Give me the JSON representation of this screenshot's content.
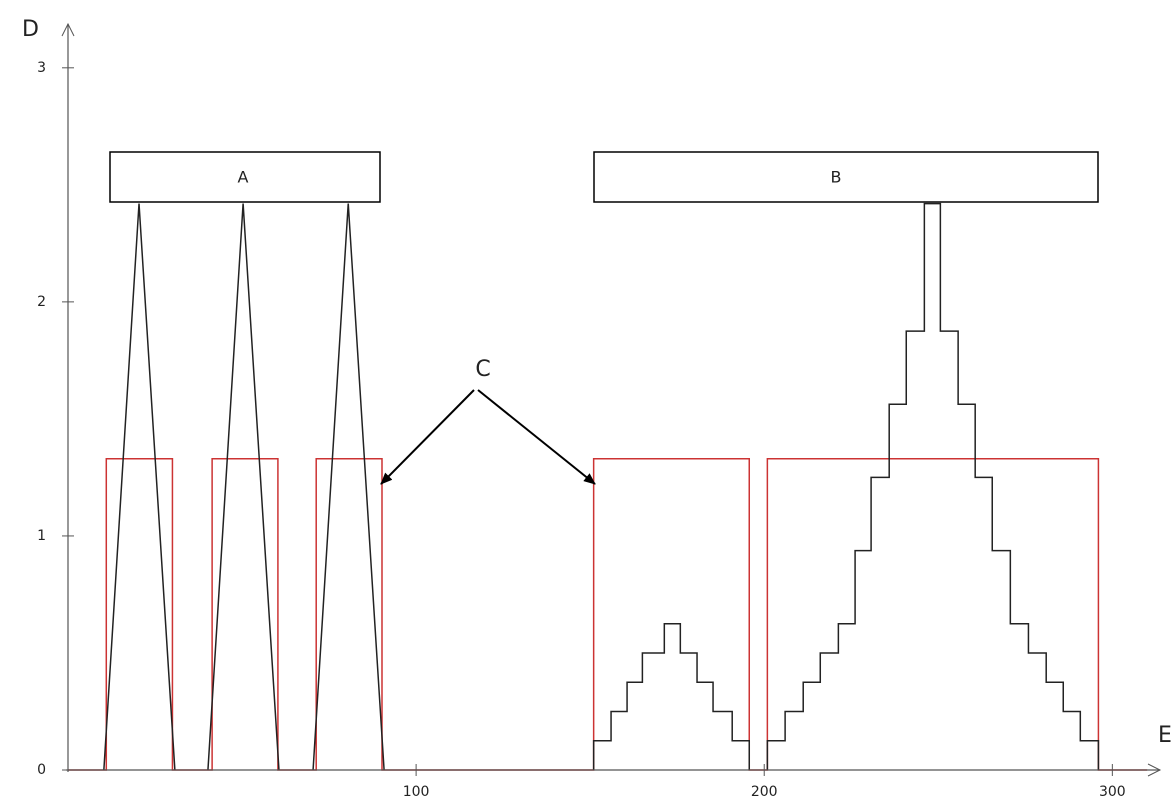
{
  "chart_data": {
    "type": "line",
    "x_label": "E",
    "y_label": "D",
    "annotations": [
      "A",
      "B",
      "C"
    ],
    "xlim": [
      0,
      318
    ],
    "ylim": [
      0,
      3.2
    ],
    "xticks": [
      100,
      200,
      300
    ],
    "yticks": [
      0,
      1,
      2,
      3
    ],
    "series": [
      {
        "color": "#cc3333",
        "step": true,
        "x": [
          0,
          11,
          30,
          41.4,
          60.3,
          71.3,
          90.2,
          151,
          195.7,
          200.9,
          296,
          310
        ],
        "values": [
          0,
          1.33,
          0,
          1.33,
          0,
          1.33,
          0,
          1.33,
          0,
          1.33,
          0,
          0
        ]
      },
      {
        "color": "#222222",
        "step": false,
        "x": [
          10.3,
          20.4,
          30.7,
          null,
          40.2,
          50.3,
          60.6,
          null,
          70.4,
          80.5,
          90.8
        ],
        "values": [
          0,
          2.42,
          0,
          null,
          0,
          2.42,
          0,
          null,
          0,
          2.42,
          0
        ]
      },
      {
        "color": "#222222",
        "step": true,
        "x": [
          151,
          151,
          156,
          160.6,
          165,
          171.3,
          175.9,
          180.7,
          185.3,
          190.8,
          195.7,
          null,
          200.9,
          200.9,
          206,
          211.2,
          216.1,
          221.3,
          226.1,
          230.7,
          235.9,
          240.8,
          246,
          250.6,
          255.7,
          260.6,
          265.5,
          270.7,
          275.9,
          281,
          285.9,
          290.8,
          296
        ],
        "values": [
          0,
          0.125,
          0.25,
          0.375,
          0.5,
          0.625,
          0.5,
          0.375,
          0.25,
          0.125,
          0,
          null,
          0,
          0.125,
          0.25,
          0.375,
          0.5,
          0.625,
          0.9375,
          1.25,
          1.5625,
          1.875,
          2.42,
          1.875,
          1.5625,
          1.25,
          0.9375,
          0.625,
          0.5,
          0.375,
          0.25,
          0.125,
          0
        ]
      }
    ]
  }
}
